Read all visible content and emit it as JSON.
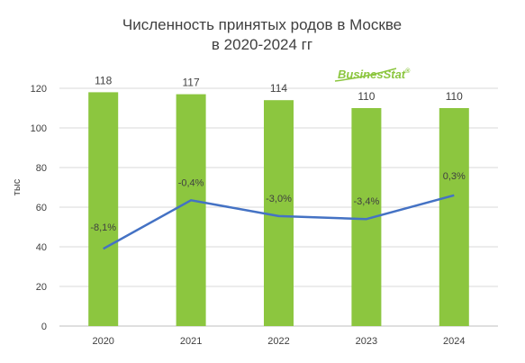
{
  "chart_data": {
    "type": "bar",
    "title_line1": "Численность принятых родов в Москве",
    "title_line2": "в 2020-2024 гг",
    "ylabel": "тыс",
    "ylim": [
      0,
      120
    ],
    "yticks": [
      0,
      20,
      40,
      60,
      80,
      100,
      120
    ],
    "categories": [
      "2020",
      "2021",
      "2022",
      "2023",
      "2024"
    ],
    "values": [
      118,
      117,
      114,
      110,
      110
    ],
    "value_labels": [
      "118",
      "117",
      "114",
      "110",
      "110"
    ],
    "line_series": {
      "values_on_left_axis": [
        39,
        63.5,
        55.5,
        54,
        66
      ],
      "labels": [
        "-8,1%",
        "-0,4%",
        "-3,0%",
        "-3,4%",
        "0,3%"
      ]
    },
    "colors": {
      "bar": "#8cc63f",
      "line": "#4472c4",
      "grid": "#d9d9d9"
    },
    "legend": "none",
    "grid": true
  },
  "logo": {
    "text_part1": "Busines",
    "text_part2": "Stat",
    "mark": "®",
    "color1": "#8cc63f",
    "color2": "#8cc63f"
  }
}
